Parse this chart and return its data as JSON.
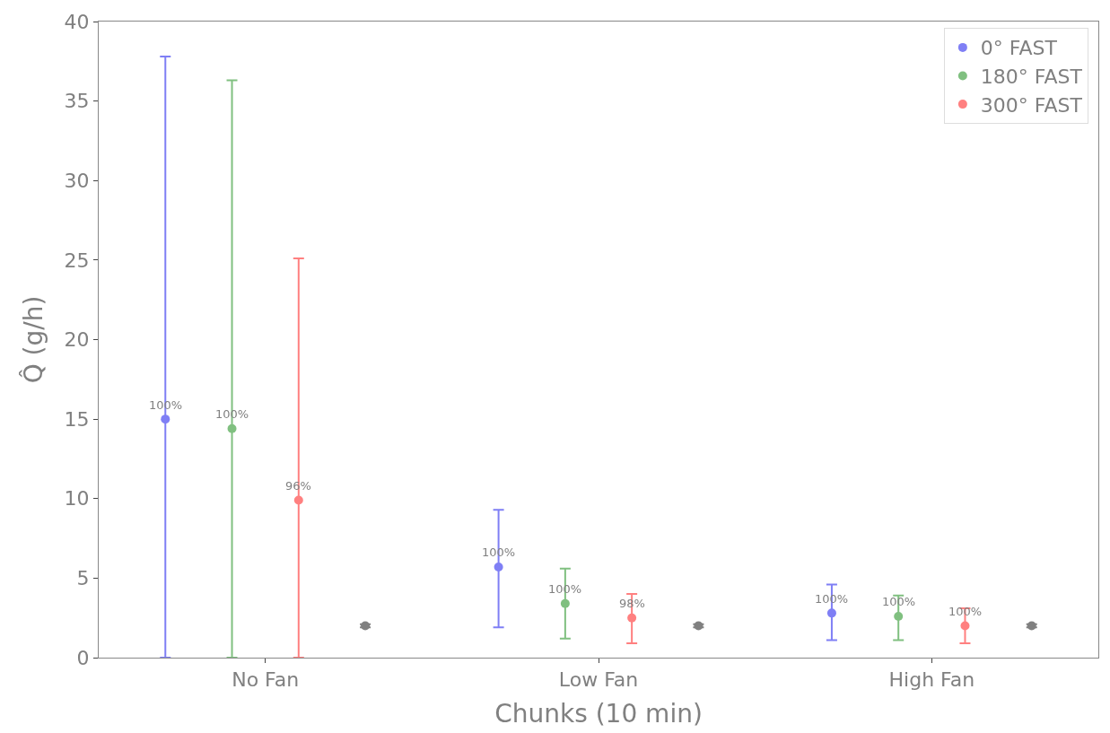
{
  "chart_data": {
    "type": "scatter",
    "xlabel": "Chunks (10 min)",
    "ylabel": "Q̂ (g/h)",
    "categories": [
      "No Fan",
      "Low Fan",
      "High Fan"
    ],
    "series": [
      {
        "name": "0° FAST",
        "color": "#7f7ff5",
        "values": [
          15.0,
          5.7,
          2.8
        ],
        "errors": [
          [
            0,
            37.8
          ],
          [
            1.9,
            9.3
          ],
          [
            1.1,
            4.6
          ]
        ]
      },
      {
        "name": "180° FAST",
        "color": "#80c080",
        "values": [
          14.4,
          3.4,
          2.6
        ],
        "errors": [
          [
            0,
            36.3
          ],
          [
            1.2,
            5.6
          ],
          [
            1.1,
            3.9
          ]
        ]
      },
      {
        "name": "300° FAST",
        "color": "#ff8080",
        "values": [
          9.9,
          2.5,
          2.0
        ],
        "errors": [
          [
            0,
            25.1
          ],
          [
            0.9,
            4.0
          ],
          [
            0.9,
            3.1
          ]
        ]
      },
      {
        "color": "#808080",
        "values": [
          2.0,
          2.0,
          2.0
        ],
        "errors": [
          0.1,
          0.1,
          0.1
        ]
      }
    ],
    "annotations": [
      "100%",
      "100%",
      "96%",
      "100%",
      "100%",
      "98%",
      "100%",
      "100%",
      "100%"
    ],
    "ylim": [
      0,
      40
    ],
    "yticks": [
      0,
      5,
      10,
      15,
      20,
      25,
      30,
      35,
      40
    ],
    "legend": "top right",
    "marker": "circle"
  }
}
